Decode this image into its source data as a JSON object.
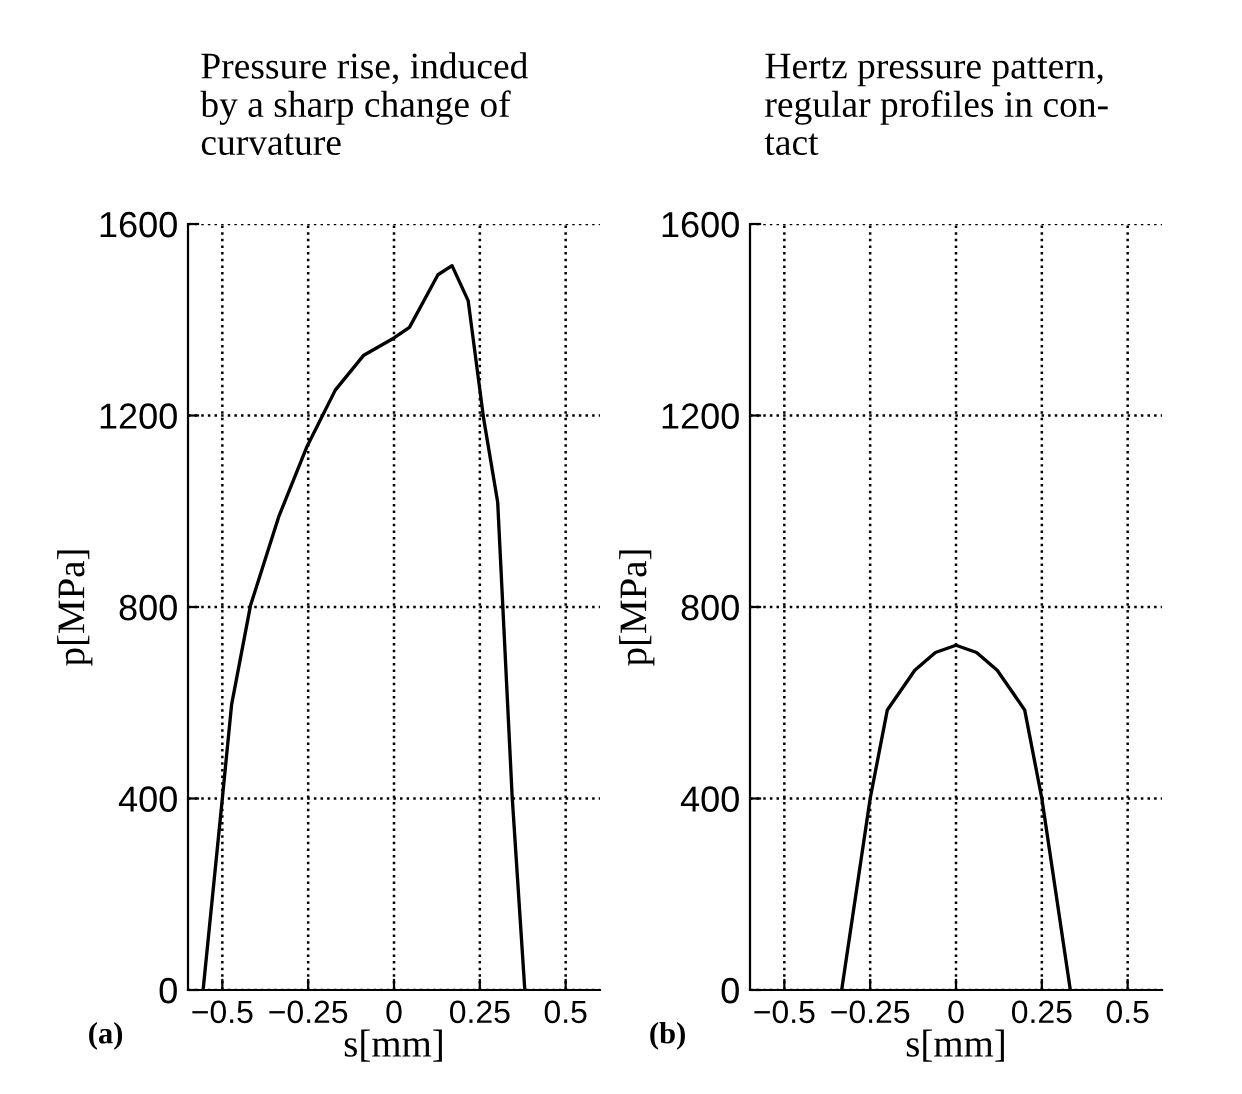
{
  "chart_data": [
    {
      "type": "line",
      "title": "Pressure rise, induced\nby a sharp change of\ncurvature",
      "xlabel": "s[mm]",
      "ylabel": "p[MPa]",
      "annotations": [
        "(a)"
      ],
      "x": [
        -0.556,
        -0.5,
        -0.473,
        -0.418,
        -0.335,
        -0.253,
        -0.171,
        -0.088,
        0,
        0.045,
        0.128,
        0.169,
        0.216,
        0.261,
        0.302,
        0.344,
        0.381
      ],
      "series": [
        {
          "color": "#000000",
          "values": [
            0,
            400,
            596,
            803,
            990,
            1136,
            1253,
            1326,
            1362,
            1384,
            1494,
            1513,
            1440,
            1194,
            1019,
            406,
            0
          ]
        }
      ],
      "xlim": [
        -0.6,
        0.6
      ],
      "ylim": [
        0,
        1600
      ],
      "xticks": [
        -0.5,
        -0.25,
        0,
        0.25,
        0.5
      ],
      "yticks": [
        0,
        400,
        800,
        1200,
        1600
      ],
      "grid": true,
      "line_style": "solid",
      "marker": "none"
    },
    {
      "type": "line",
      "title": "Hertz pressure pattern,\nregular profiles in con-\ntact",
      "xlabel": "s[mm]",
      "ylabel": "p[MPa]",
      "annotations": [
        "(b)"
      ],
      "x": [
        -0.333,
        -0.25,
        -0.2,
        -0.12,
        -0.06,
        0,
        0.06,
        0.12,
        0.2,
        0.25,
        0.333
      ],
      "series": [
        {
          "color": "#000000",
          "values": [
            0,
            400,
            585,
            668,
            705,
            720,
            705,
            668,
            585,
            400,
            0
          ]
        }
      ],
      "xlim": [
        -0.6,
        0.6
      ],
      "ylim": [
        0,
        1600
      ],
      "xticks": [
        -0.5,
        -0.25,
        0,
        0.25,
        0.5
      ],
      "yticks": [
        0,
        400,
        800,
        1200,
        1600
      ],
      "grid": true,
      "line_style": "solid",
      "marker": "none"
    }
  ]
}
